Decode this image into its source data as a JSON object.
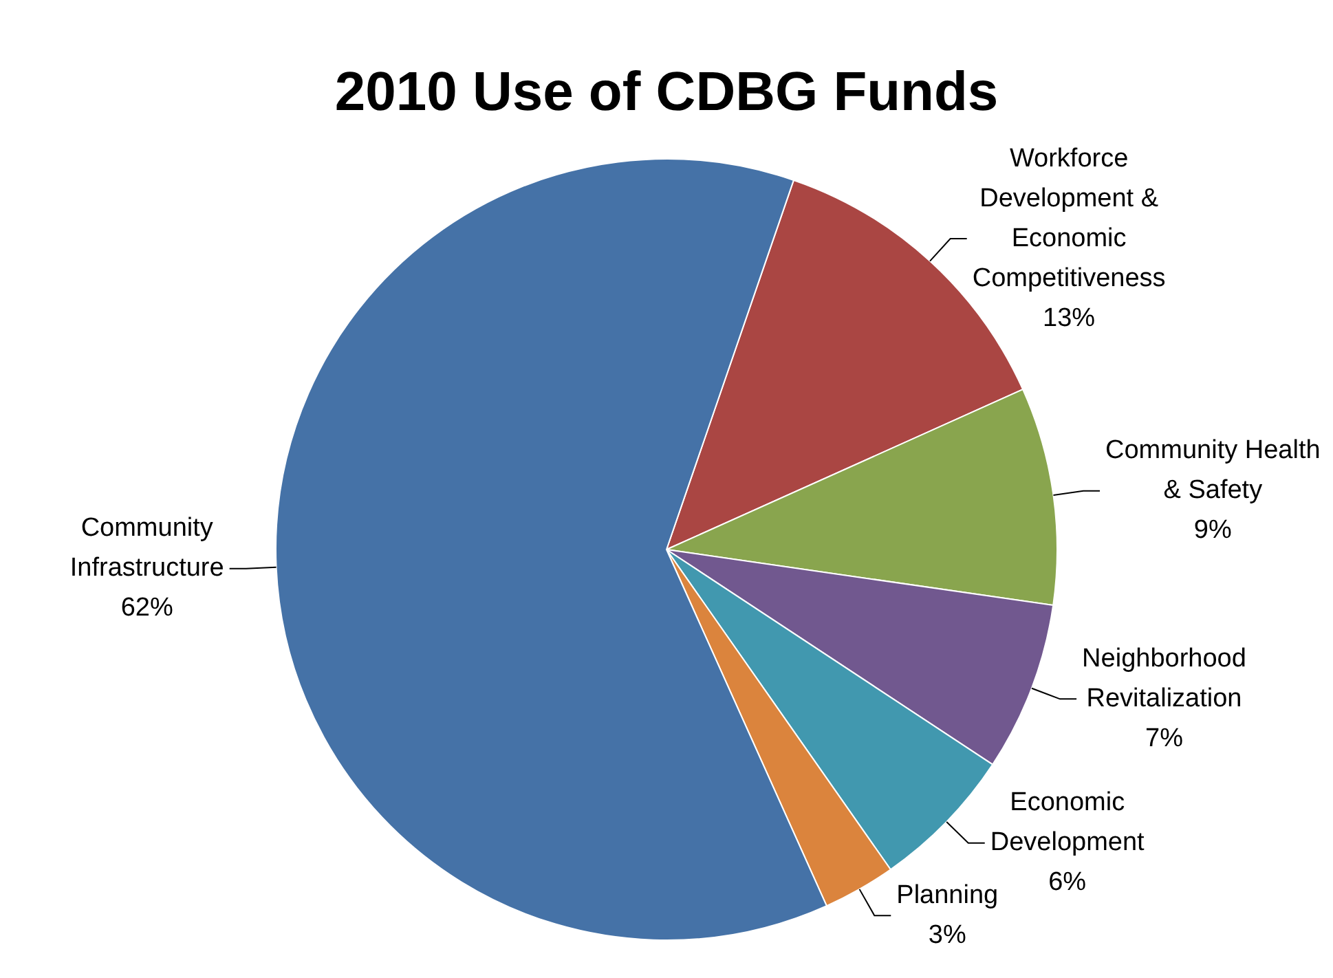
{
  "chart_data": {
    "type": "pie",
    "title": "2010 Use of CDBG Funds",
    "categories": [
      "Workforce Development & Economic Competitiveness",
      "Community Health & Safety",
      "Neighborhood Revitalization",
      "Economic Development",
      "Planning",
      "Community Infrastructure"
    ],
    "values": [
      13,
      9,
      7,
      6,
      3,
      62
    ],
    "value_labels": [
      "13%",
      "9%",
      "7%",
      "6%",
      "3%",
      "62%"
    ],
    "colors": [
      "#aa4643",
      "#89a54e",
      "#71588f",
      "#4198af",
      "#db843d",
      "#4572a7"
    ],
    "legend": false
  }
}
